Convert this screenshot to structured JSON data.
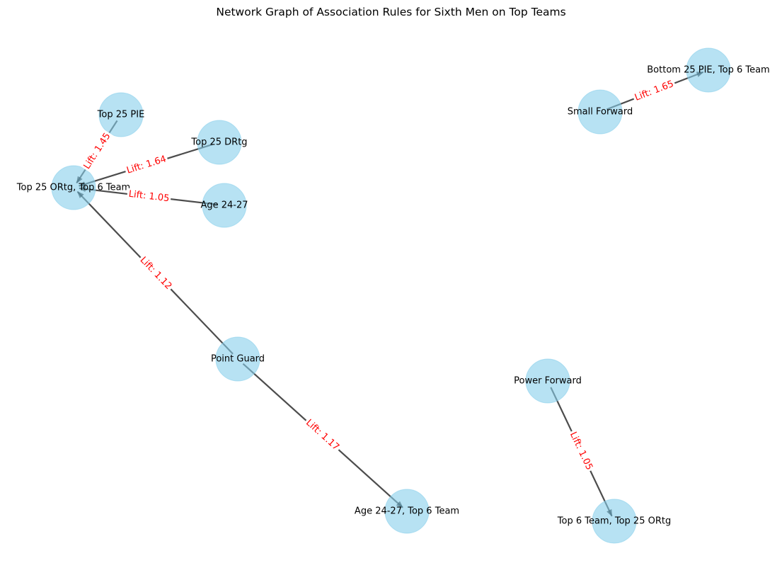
{
  "title": "Network Graph of Association Rules for Sixth Men on Top Teams",
  "colors": {
    "node": "#87CEEB",
    "edge": "#000000",
    "edge_label": "#ff0000"
  },
  "nodes": [
    {
      "id": "top25pie",
      "label": "Top 25 PIE"
    },
    {
      "id": "top25drtg",
      "label": "Top 25 DRtg"
    },
    {
      "id": "ortgtop6",
      "label": "Top 25 ORtg, Top 6 Team"
    },
    {
      "id": "age2427",
      "label": "Age 24-27"
    },
    {
      "id": "pointguard",
      "label": "Point Guard"
    },
    {
      "id": "agetop6",
      "label": "Age 24-27, Top 6 Team"
    },
    {
      "id": "smallforward",
      "label": "Small Forward"
    },
    {
      "id": "bottom25pie",
      "label": "Bottom 25 PIE, Top 6 Team"
    },
    {
      "id": "powerforward",
      "label": "Power Forward"
    },
    {
      "id": "top6ortg",
      "label": "Top 6 Team, Top 25 ORtg"
    }
  ],
  "edges": [
    {
      "source": "top25pie",
      "target": "ortgtop6",
      "label": "Lift: 1.45"
    },
    {
      "source": "top25drtg",
      "target": "ortgtop6",
      "label": "Lift: 1.64"
    },
    {
      "source": "age2427",
      "target": "ortgtop6",
      "label": "Lift: 1.05"
    },
    {
      "source": "pointguard",
      "target": "ortgtop6",
      "label": "Lift: 1.12"
    },
    {
      "source": "pointguard",
      "target": "agetop6",
      "label": "Lift: 1.17"
    },
    {
      "source": "smallforward",
      "target": "bottom25pie",
      "label": "Lift: 1.65"
    },
    {
      "source": "powerforward",
      "target": "top6ortg",
      "label": "Lift: 1.05"
    }
  ]
}
